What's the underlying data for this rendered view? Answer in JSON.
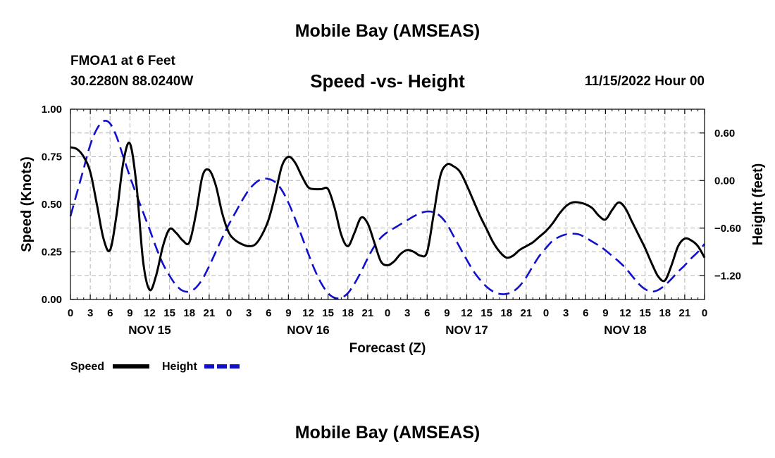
{
  "header": {
    "title": "Mobile Bay (AMSEAS)",
    "station": "FMOA1 at 6 Feet",
    "coords": "30.2280N  88.0240W",
    "subtitle": "Speed -vs- Height",
    "datetime": "11/15/2022 Hour 00"
  },
  "footer": {
    "title": "Mobile Bay (AMSEAS)"
  },
  "colors": {
    "speed": "#000000",
    "height": "#1010cc",
    "grid": "#b4b4b4"
  },
  "chart_data": {
    "type": "line",
    "title": "Speed -vs- Height",
    "xlabel": "Forecast (Z)",
    "ylabel": "Speed (Knots)",
    "y2label": "Height (feet)",
    "x_unit": "hours from 11/15/2022 00Z",
    "xlim": [
      0,
      96
    ],
    "ylim": [
      0,
      1.0
    ],
    "y2lim": [
      -1.5,
      0.9
    ],
    "x_ticks": [
      0,
      3,
      6,
      9,
      12,
      15,
      18,
      21,
      24,
      27,
      30,
      33,
      36,
      39,
      42,
      45,
      48,
      51,
      54,
      57,
      60,
      63,
      66,
      69,
      72,
      75,
      78,
      81,
      84,
      87,
      90,
      93,
      96
    ],
    "x_tick_labels": [
      "0",
      "3",
      "6",
      "9",
      "12",
      "15",
      "18",
      "21",
      "0",
      "3",
      "6",
      "9",
      "12",
      "15",
      "18",
      "21",
      "0",
      "3",
      "6",
      "9",
      "12",
      "15",
      "18",
      "21",
      "0",
      "3",
      "6",
      "9",
      "12",
      "15",
      "18",
      "21",
      "0"
    ],
    "y_ticks": [
      0,
      0.25,
      0.5,
      0.75,
      1.0
    ],
    "y_tick_labels": [
      "0.00",
      "0.25",
      "0.50",
      "0.75",
      "1.00"
    ],
    "y2_ticks": [
      0.6,
      0.0,
      -0.6,
      -1.2
    ],
    "y2_tick_labels": [
      "0.60",
      "0.00",
      "−0.60",
      "−1.20"
    ],
    "day_labels": [
      {
        "x": 12,
        "label": "NOV 15"
      },
      {
        "x": 36,
        "label": "NOV 16"
      },
      {
        "x": 60,
        "label": "NOV 17"
      },
      {
        "x": 84,
        "label": "NOV 18"
      }
    ],
    "legend": [
      {
        "name": "Speed",
        "style": "solid"
      },
      {
        "name": "Height",
        "style": "dashed"
      }
    ],
    "series": [
      {
        "name": "Speed",
        "axis": "left",
        "points": [
          [
            0,
            0.8
          ],
          [
            1,
            0.79
          ],
          [
            2,
            0.75
          ],
          [
            3,
            0.67
          ],
          [
            4,
            0.5
          ],
          [
            5,
            0.32
          ],
          [
            6,
            0.26
          ],
          [
            7,
            0.45
          ],
          [
            8,
            0.72
          ],
          [
            9,
            0.82
          ],
          [
            10,
            0.6
          ],
          [
            11,
            0.2
          ],
          [
            12,
            0.05
          ],
          [
            13,
            0.13
          ],
          [
            14,
            0.28
          ],
          [
            15,
            0.37
          ],
          [
            16,
            0.35
          ],
          [
            17,
            0.31
          ],
          [
            18,
            0.3
          ],
          [
            19,
            0.45
          ],
          [
            20,
            0.65
          ],
          [
            21,
            0.68
          ],
          [
            22,
            0.6
          ],
          [
            23,
            0.45
          ],
          [
            24,
            0.35
          ],
          [
            25,
            0.31
          ],
          [
            26,
            0.29
          ],
          [
            27,
            0.28
          ],
          [
            28,
            0.29
          ],
          [
            29,
            0.34
          ],
          [
            30,
            0.42
          ],
          [
            31,
            0.55
          ],
          [
            32,
            0.7
          ],
          [
            33,
            0.75
          ],
          [
            34,
            0.72
          ],
          [
            35,
            0.65
          ],
          [
            36,
            0.59
          ],
          [
            37,
            0.58
          ],
          [
            38,
            0.58
          ],
          [
            39,
            0.58
          ],
          [
            40,
            0.48
          ],
          [
            41,
            0.34
          ],
          [
            42,
            0.28
          ],
          [
            43,
            0.35
          ],
          [
            44,
            0.43
          ],
          [
            45,
            0.4
          ],
          [
            46,
            0.3
          ],
          [
            47,
            0.2
          ],
          [
            48,
            0.18
          ],
          [
            49,
            0.2
          ],
          [
            50,
            0.24
          ],
          [
            51,
            0.26
          ],
          [
            52,
            0.25
          ],
          [
            53,
            0.23
          ],
          [
            54,
            0.25
          ],
          [
            55,
            0.45
          ],
          [
            56,
            0.65
          ],
          [
            57,
            0.71
          ],
          [
            58,
            0.7
          ],
          [
            59,
            0.67
          ],
          [
            60,
            0.6
          ],
          [
            61,
            0.52
          ],
          [
            62,
            0.44
          ],
          [
            63,
            0.37
          ],
          [
            64,
            0.3
          ],
          [
            65,
            0.25
          ],
          [
            66,
            0.22
          ],
          [
            67,
            0.23
          ],
          [
            68,
            0.26
          ],
          [
            69,
            0.28
          ],
          [
            70,
            0.3
          ],
          [
            71,
            0.33
          ],
          [
            72,
            0.36
          ],
          [
            73,
            0.4
          ],
          [
            74,
            0.45
          ],
          [
            75,
            0.49
          ],
          [
            76,
            0.51
          ],
          [
            77,
            0.51
          ],
          [
            78,
            0.5
          ],
          [
            79,
            0.48
          ],
          [
            80,
            0.44
          ],
          [
            81,
            0.42
          ],
          [
            82,
            0.47
          ],
          [
            83,
            0.51
          ],
          [
            84,
            0.48
          ],
          [
            85,
            0.41
          ],
          [
            86,
            0.34
          ],
          [
            87,
            0.27
          ],
          [
            88,
            0.19
          ],
          [
            89,
            0.12
          ],
          [
            90,
            0.1
          ],
          [
            91,
            0.18
          ],
          [
            92,
            0.28
          ],
          [
            93,
            0.32
          ],
          [
            94,
            0.31
          ],
          [
            95,
            0.28
          ],
          [
            96,
            0.22
          ]
        ]
      },
      {
        "name": "Height",
        "axis": "right",
        "points": [
          [
            0,
            -0.45
          ],
          [
            1,
            -0.15
          ],
          [
            2,
            0.15
          ],
          [
            3,
            0.45
          ],
          [
            4,
            0.65
          ],
          [
            5,
            0.75
          ],
          [
            6,
            0.72
          ],
          [
            7,
            0.55
          ],
          [
            8,
            0.3
          ],
          [
            9,
            0.05
          ],
          [
            10,
            -0.18
          ],
          [
            11,
            -0.4
          ],
          [
            12,
            -0.62
          ],
          [
            13,
            -0.85
          ],
          [
            14,
            -1.05
          ],
          [
            15,
            -1.2
          ],
          [
            16,
            -1.32
          ],
          [
            17,
            -1.39
          ],
          [
            18,
            -1.4
          ],
          [
            19,
            -1.35
          ],
          [
            20,
            -1.24
          ],
          [
            21,
            -1.08
          ],
          [
            22,
            -0.9
          ],
          [
            23,
            -0.72
          ],
          [
            24,
            -0.55
          ],
          [
            25,
            -0.4
          ],
          [
            26,
            -0.25
          ],
          [
            27,
            -0.12
          ],
          [
            28,
            -0.03
          ],
          [
            29,
            0.02
          ],
          [
            30,
            0.02
          ],
          [
            31,
            -0.02
          ],
          [
            32,
            -0.12
          ],
          [
            33,
            -0.28
          ],
          [
            34,
            -0.48
          ],
          [
            35,
            -0.7
          ],
          [
            36,
            -0.92
          ],
          [
            37,
            -1.13
          ],
          [
            38,
            -1.3
          ],
          [
            39,
            -1.42
          ],
          [
            40,
            -1.48
          ],
          [
            41,
            -1.48
          ],
          [
            42,
            -1.42
          ],
          [
            43,
            -1.3
          ],
          [
            44,
            -1.15
          ],
          [
            45,
            -0.98
          ],
          [
            46,
            -0.83
          ],
          [
            47,
            -0.72
          ],
          [
            48,
            -0.65
          ],
          [
            49,
            -0.6
          ],
          [
            50,
            -0.55
          ],
          [
            51,
            -0.5
          ],
          [
            52,
            -0.45
          ],
          [
            53,
            -0.41
          ],
          [
            54,
            -0.39
          ],
          [
            55,
            -0.4
          ],
          [
            56,
            -0.45
          ],
          [
            57,
            -0.55
          ],
          [
            58,
            -0.7
          ],
          [
            59,
            -0.85
          ],
          [
            60,
            -1.0
          ],
          [
            61,
            -1.14
          ],
          [
            62,
            -1.25
          ],
          [
            63,
            -1.34
          ],
          [
            64,
            -1.4
          ],
          [
            65,
            -1.43
          ],
          [
            66,
            -1.43
          ],
          [
            67,
            -1.4
          ],
          [
            68,
            -1.33
          ],
          [
            69,
            -1.22
          ],
          [
            70,
            -1.08
          ],
          [
            71,
            -0.95
          ],
          [
            72,
            -0.85
          ],
          [
            73,
            -0.76
          ],
          [
            74,
            -0.71
          ],
          [
            75,
            -0.68
          ],
          [
            76,
            -0.67
          ],
          [
            77,
            -0.68
          ],
          [
            78,
            -0.72
          ],
          [
            79,
            -0.77
          ],
          [
            80,
            -0.82
          ],
          [
            81,
            -0.88
          ],
          [
            82,
            -0.95
          ],
          [
            83,
            -1.02
          ],
          [
            84,
            -1.1
          ],
          [
            85,
            -1.2
          ],
          [
            86,
            -1.3
          ],
          [
            87,
            -1.37
          ],
          [
            88,
            -1.4
          ],
          [
            89,
            -1.38
          ],
          [
            90,
            -1.32
          ],
          [
            91,
            -1.24
          ],
          [
            92,
            -1.15
          ],
          [
            93,
            -1.07
          ],
          [
            94,
            -0.98
          ],
          [
            95,
            -0.9
          ],
          [
            96,
            -0.8
          ]
        ]
      }
    ]
  }
}
